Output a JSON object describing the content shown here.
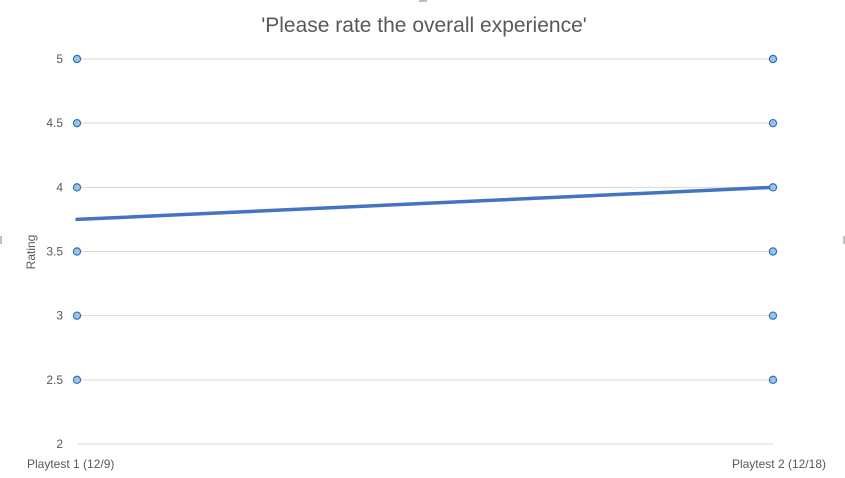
{
  "chart_data": {
    "type": "line",
    "title": "'Please rate the overall experience'",
    "ylabel": "Rating",
    "xlabel": "",
    "ylim": [
      2,
      5
    ],
    "y_ticks": [
      "2",
      "2.5",
      "3",
      "3.5",
      "4",
      "4.5",
      "5"
    ],
    "y_tick_values": [
      2,
      2.5,
      3,
      3.5,
      4,
      4.5,
      5
    ],
    "categories": [
      "Playtest 1 (12/9)",
      "Playtest 2 (12/18)"
    ],
    "series": [
      {
        "values": [
          3.75,
          4
        ]
      }
    ],
    "grid": true,
    "legend": "none",
    "colors": {
      "line": "#4472c4",
      "marker_fill": "#9dc3e6",
      "marker_stroke": "#2e75b6",
      "grid": "#d9d9d9",
      "text": "#595959"
    }
  }
}
